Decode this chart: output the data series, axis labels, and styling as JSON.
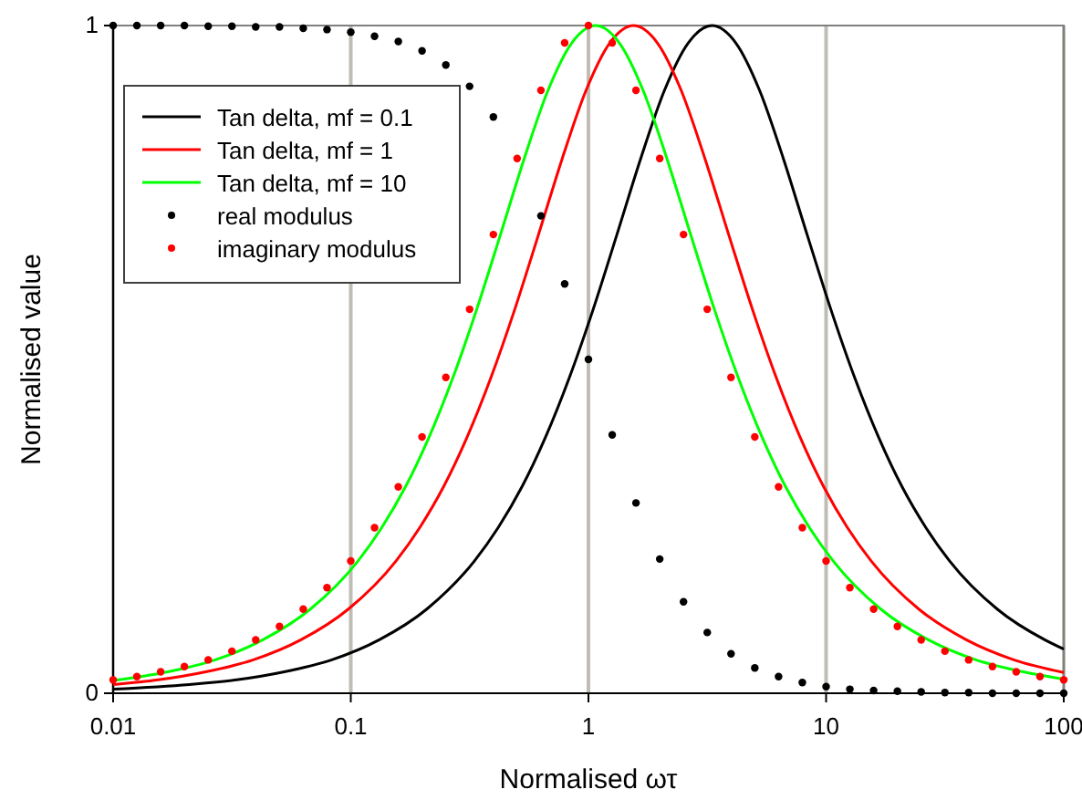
{
  "chart_data": {
    "type": "line",
    "xlabel": "Normalised ωτ",
    "ylabel": "Normalised value",
    "log": "x",
    "xlim": [
      0.01,
      100
    ],
    "xticks": [
      0.01,
      0.1,
      1,
      10,
      100
    ],
    "ylim": [
      0,
      1
    ],
    "yticks": [
      0,
      1
    ],
    "grid": "x",
    "legend": "top left",
    "series": [
      {
        "name": "Tan delta, mf = 0.1",
        "type": "line",
        "color": "#000000",
        "marker": "none",
        "x": [
          0.01,
          0.0209,
          0.0331,
          0.0525,
          0.0832,
          0.1318,
          0.2089,
          0.3311,
          0.4169,
          0.5248,
          0.6607,
          0.8318,
          1.047,
          1.318,
          1.66,
          2.089,
          2.63,
          3.311,
          4.169,
          5.248,
          6.607,
          8.318,
          10.47,
          13.18,
          16.6,
          20.89,
          26.3,
          33.11,
          52.48,
          83.18,
          100
        ],
        "values": [
          0.006,
          0.013,
          0.02,
          0.032,
          0.05,
          0.08,
          0.126,
          0.198,
          0.248,
          0.309,
          0.384,
          0.473,
          0.575,
          0.687,
          0.801,
          0.903,
          0.974,
          1,
          0.974,
          0.903,
          0.801,
          0.687,
          0.575,
          0.473,
          0.384,
          0.309,
          0.248,
          0.198,
          0.126,
          0.08,
          0.066
        ]
      },
      {
        "name": "Tan delta, mf = 1",
        "type": "line",
        "color": "#ff0000",
        "marker": "none",
        "x": [
          0.01,
          0.01549,
          0.02455,
          0.0389,
          0.0617,
          0.0977,
          0.1549,
          0.195,
          0.2455,
          0.309,
          0.389,
          0.4898,
          0.6166,
          0.7762,
          0.9772,
          1.23,
          1.549,
          1.95,
          2.455,
          3.09,
          3.89,
          4.898,
          6.166,
          7.762,
          9.772,
          12.3,
          15.49,
          24.55,
          38.9,
          61.66,
          100
        ],
        "values": [
          0.013,
          0.02,
          0.032,
          0.05,
          0.08,
          0.126,
          0.198,
          0.248,
          0.309,
          0.384,
          0.473,
          0.575,
          0.687,
          0.801,
          0.903,
          0.974,
          1,
          0.974,
          0.903,
          0.801,
          0.687,
          0.575,
          0.473,
          0.384,
          0.309,
          0.248,
          0.198,
          0.126,
          0.08,
          0.05,
          0.031
        ]
      },
      {
        "name": "Tan delta, mf = 10",
        "type": "line",
        "color": "#00ff00",
        "marker": "none",
        "x": [
          0.01,
          0.01698,
          0.02692,
          0.04266,
          0.06761,
          0.1072,
          0.1349,
          0.1698,
          0.2138,
          0.2692,
          0.3388,
          0.4266,
          0.537,
          0.6761,
          0.8511,
          1.072,
          1.349,
          1.698,
          2.138,
          2.692,
          3.388,
          4.266,
          5.37,
          6.761,
          8.511,
          10.72,
          16.98,
          26.92,
          42.66,
          67.61,
          100
        ],
        "values": [
          0.019,
          0.032,
          0.05,
          0.08,
          0.126,
          0.198,
          0.248,
          0.309,
          0.384,
          0.473,
          0.575,
          0.687,
          0.801,
          0.903,
          0.974,
          1,
          0.974,
          0.903,
          0.801,
          0.687,
          0.575,
          0.473,
          0.384,
          0.309,
          0.248,
          0.198,
          0.126,
          0.08,
          0.05,
          0.032,
          0.021
        ]
      },
      {
        "name": "real modulus",
        "type": "scatter",
        "color": "#000000",
        "marker": "circle",
        "x": [
          0.01,
          0.01259,
          0.01585,
          0.01995,
          0.02512,
          0.03162,
          0.03981,
          0.05012,
          0.0631,
          0.07943,
          0.1,
          0.1259,
          0.1585,
          0.1995,
          0.2512,
          0.3162,
          0.3981,
          0.5012,
          0.631,
          0.7943,
          1,
          1.259,
          1.585,
          1.995,
          2.512,
          3.162,
          3.981,
          5.012,
          6.31,
          7.943,
          10,
          12.59,
          15.85,
          19.95,
          25.12,
          31.62,
          39.81,
          50.12,
          63.1,
          79.43,
          100
        ],
        "values": [
          1,
          1,
          1,
          1,
          0.999,
          0.999,
          0.998,
          0.998,
          0.996,
          0.994,
          0.99,
          0.984,
          0.976,
          0.962,
          0.941,
          0.909,
          0.863,
          null,
          0.715,
          0.613,
          0.5,
          0.387,
          0.285,
          0.201,
          0.137,
          0.091,
          0.059,
          0.038,
          0.025,
          0.016,
          0.01,
          0.006,
          0.004,
          0.003,
          0.002,
          0.001,
          0.001,
          0,
          0,
          0,
          0
        ]
      },
      {
        "name": "imaginary modulus",
        "type": "scatter",
        "color": "#ff0000",
        "marker": "circle",
        "x": [
          0.01,
          0.01259,
          0.01585,
          0.01995,
          0.02512,
          0.03162,
          0.03981,
          0.05012,
          0.0631,
          0.07943,
          0.1,
          0.1259,
          0.1585,
          0.1995,
          0.2512,
          0.3162,
          0.3981,
          0.5012,
          0.631,
          0.7943,
          1,
          1.259,
          1.585,
          1.995,
          2.512,
          3.162,
          3.981,
          5.012,
          6.31,
          7.943,
          10,
          12.59,
          15.85,
          19.95,
          25.12,
          31.62,
          39.81,
          50.12,
          63.1,
          79.43,
          100
        ],
        "values": [
          0.02,
          0.025,
          0.032,
          0.04,
          0.05,
          0.063,
          0.08,
          0.1,
          0.126,
          0.158,
          0.198,
          0.248,
          0.309,
          0.384,
          0.473,
          0.575,
          0.687,
          0.801,
          0.903,
          0.974,
          1,
          0.974,
          0.903,
          0.801,
          0.687,
          0.575,
          0.473,
          0.384,
          0.309,
          0.248,
          0.198,
          0.158,
          0.126,
          0.1,
          0.08,
          0.063,
          0.05,
          0.04,
          0.032,
          0.025,
          0.02
        ]
      }
    ]
  }
}
